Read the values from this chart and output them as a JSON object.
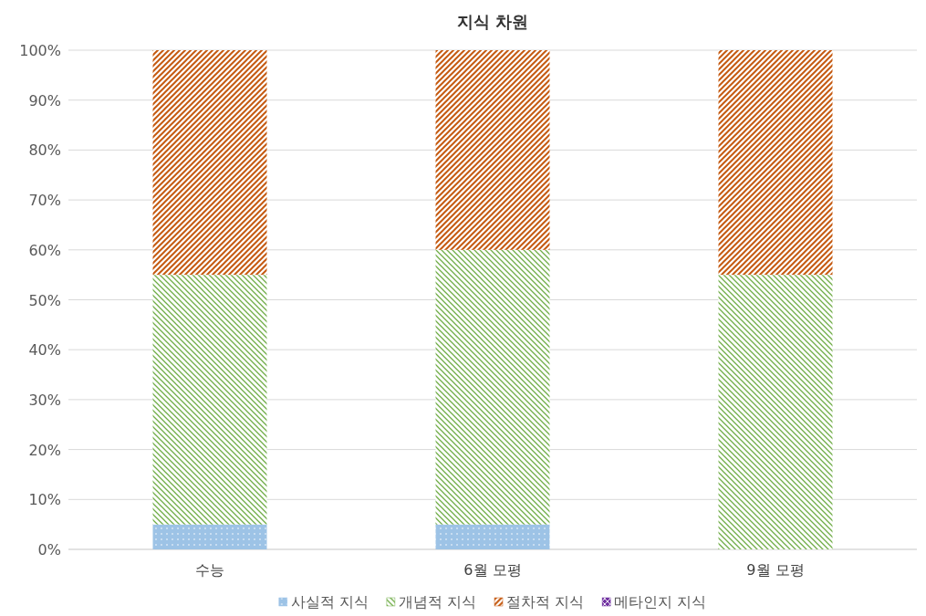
{
  "chart_data": {
    "type": "bar",
    "title": "지식 차원",
    "stacked": true,
    "categories": [
      "수능",
      "6월 모평",
      "9월 모평"
    ],
    "series": [
      {
        "name": "사실적 지식",
        "color": "#9dc3e6",
        "values": [
          5,
          5,
          0
        ]
      },
      {
        "name": "개념적 지식",
        "color": "#70ad47",
        "values": [
          50,
          55,
          55
        ]
      },
      {
        "name": "절차적 지식",
        "color": "#c55a11",
        "values": [
          45,
          40,
          45
        ]
      },
      {
        "name": "메타인지 지식",
        "color": "#7030a0",
        "values": [
          0,
          0,
          0
        ]
      }
    ],
    "ylim": [
      0,
      100
    ],
    "yticks": [
      {
        "value": 0,
        "label": "0%"
      },
      {
        "value": 10,
        "label": "10%"
      },
      {
        "value": 20,
        "label": "20%"
      },
      {
        "value": 30,
        "label": "30%"
      },
      {
        "value": 40,
        "label": "40%"
      },
      {
        "value": 50,
        "label": "50%"
      },
      {
        "value": 60,
        "label": "60%"
      },
      {
        "value": 70,
        "label": "70%"
      },
      {
        "value": 80,
        "label": "80%"
      },
      {
        "value": 90,
        "label": "90%"
      },
      {
        "value": 100,
        "label": "100%"
      }
    ],
    "grid": "y",
    "legend": "bottom"
  }
}
